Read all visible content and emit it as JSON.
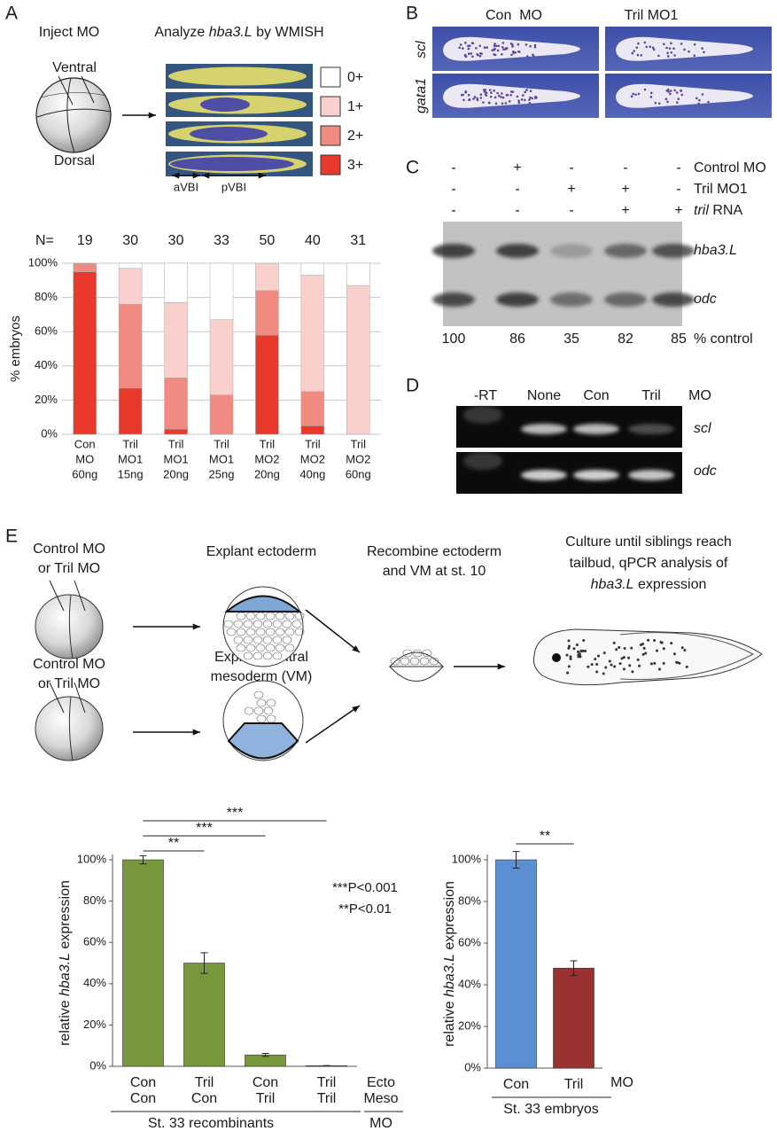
{
  "figure": {
    "A": {
      "letter": "A",
      "inject": "Inject MO",
      "analyze": [
        "Analyze ",
        "hba3.L",
        " by WMISH"
      ],
      "ventral": "Ventral",
      "dorsal": "Dorsal",
      "avbi": "aVBI",
      "pvbi": "pVBI"
    },
    "B": {
      "letter": "B",
      "columns": [
        "Con  MO",
        "Tril MO1"
      ],
      "rows": [
        "scl",
        "gata1"
      ]
    },
    "C": {
      "letter": "C",
      "row_labels": [
        [
          "Control MO"
        ],
        [
          "Tril MO1"
        ],
        [
          "tril",
          " RNA"
        ]
      ],
      "signs": [
        [
          "-",
          "+",
          "-",
          "-",
          "-"
        ],
        [
          "-",
          "-",
          "+",
          "+",
          "-"
        ],
        [
          "-",
          "-",
          "-",
          "+",
          "+"
        ]
      ],
      "genes": [
        "hba3.L",
        "odc"
      ],
      "percent": [
        100,
        86,
        35,
        82,
        85
      ],
      "percent_label": "% control"
    },
    "D": {
      "letter": "D",
      "lanes": [
        "-RT",
        "None",
        "Con",
        "Tril"
      ],
      "mo": "MO",
      "genes": [
        "scl",
        "odc"
      ]
    },
    "E": {
      "letter": "E",
      "injection": [
        "Control MO",
        "or Tril MO"
      ],
      "ectoderm": "Explant ectoderm",
      "mesoderm": [
        "Explant ventral",
        "mesoderm (VM)"
      ],
      "recombine": [
        "Recombine ectoderm",
        "and VM at st. 10"
      ],
      "culture": [
        "Culture until siblings reach",
        "tailbud, qPCR analysis of"
      ],
      "culture_gene": [
        "hba3.L",
        " expression"
      ]
    }
  },
  "chart_data": [
    {
      "type": "stacked_bar",
      "ylabel": "% embryos",
      "n_label": "N=",
      "n": [
        19,
        30,
        30,
        33,
        50,
        40,
        31
      ],
      "categories": [
        [
          "Con",
          "MO",
          "60ng"
        ],
        [
          "Tril",
          "MO1",
          "15ng"
        ],
        [
          "Tril",
          "MO1",
          "20ng"
        ],
        [
          "Tril",
          "MO1",
          "25ng"
        ],
        [
          "Tril",
          "MO2",
          "20ng"
        ],
        [
          "Tril",
          "MO2",
          "40ng"
        ],
        [
          "Tril",
          "MO2",
          "60ng"
        ]
      ],
      "series": [
        {
          "name": "3+",
          "color": "#e8392b",
          "values": [
            95,
            27,
            3,
            0,
            58,
            5,
            0
          ]
        },
        {
          "name": "2+",
          "color": "#f18a80",
          "values": [
            5,
            49,
            30,
            23,
            26,
            20,
            0
          ]
        },
        {
          "name": "1+",
          "color": "#f9d0cc",
          "values": [
            0,
            21,
            44,
            44,
            16,
            68,
            87
          ]
        },
        {
          "name": "0+",
          "color": "#ffffff",
          "values": [
            0,
            3,
            23,
            33,
            0,
            7,
            13
          ]
        }
      ],
      "ylim": [
        0,
        100
      ],
      "yticks": [
        {
          "value": 0,
          "label": "0%"
        },
        {
          "value": 20,
          "label": "20%"
        },
        {
          "value": 40,
          "label": "40%"
        },
        {
          "value": 60,
          "label": "60%"
        },
        {
          "value": 80,
          "label": "80%"
        },
        {
          "value": 100,
          "label": "100%"
        }
      ],
      "grid": true
    },
    {
      "type": "bar",
      "ylabel": [
        "relative ",
        "hba3.L",
        " expression"
      ],
      "categories": [
        [
          "Con",
          "Con"
        ],
        [
          "Tril",
          "Con"
        ],
        [
          "Con",
          "Tril"
        ],
        [
          "Tril",
          "Tril"
        ]
      ],
      "row_labels": [
        "Ecto",
        "Meso"
      ],
      "unit_label": "MO",
      "group_label": "St. 33 recombinants",
      "values": [
        100,
        50,
        5.5,
        0.3
      ],
      "errors": [
        2,
        5,
        0.7,
        0.1
      ],
      "color": "#77993b",
      "significance": [
        "**",
        "***",
        "***"
      ],
      "notes": [
        "***P<0.001",
        "**P<0.01"
      ],
      "ylim": [
        0,
        100
      ],
      "yticks": [
        {
          "value": 0,
          "label": "0%"
        },
        {
          "value": 20,
          "label": "20%"
        },
        {
          "value": 40,
          "label": "40%"
        },
        {
          "value": 60,
          "label": "60%"
        },
        {
          "value": 80,
          "label": "80%"
        },
        {
          "value": 100,
          "label": "100%"
        }
      ]
    },
    {
      "type": "bar",
      "ylabel": [
        "relative ",
        "hba3.L",
        " expression"
      ],
      "categories": [
        [
          "Con"
        ],
        [
          "Tril"
        ]
      ],
      "unit_label": "MO",
      "group_label": "St. 33 embryos",
      "values": [
        100,
        48
      ],
      "errors": [
        4,
        3.5
      ],
      "colors": [
        "#5b8fd2",
        "#9c3131"
      ],
      "significance": [
        "**"
      ],
      "ylim": [
        0,
        100
      ],
      "yticks": [
        {
          "value": 0,
          "label": "0%"
        },
        {
          "value": 20,
          "label": "20%"
        },
        {
          "value": 40,
          "label": "40%"
        },
        {
          "value": 60,
          "label": "60%"
        },
        {
          "value": 80,
          "label": "80%"
        },
        {
          "value": 100,
          "label": "100%"
        }
      ]
    }
  ]
}
